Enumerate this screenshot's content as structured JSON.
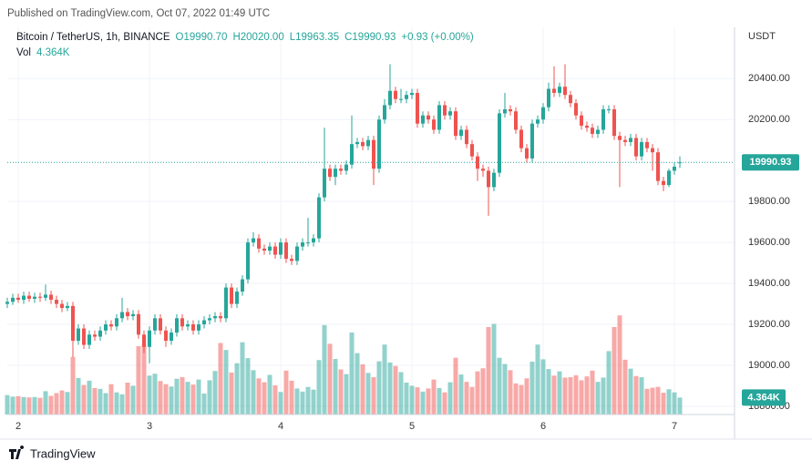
{
  "published": "Published on TradingView.com, Oct 07, 2022 01:49 UTC",
  "brand": "TradingView",
  "chart_data": {
    "type": "candlestick",
    "symbol": "Bitcoin / TetherUS, 1h, BINANCE",
    "ohlc_labels": {
      "open": "O19990.70",
      "high": "H20020.00",
      "low": "L19963.35",
      "close": "C19990.93",
      "change": "+0.93 (+0.00%)"
    },
    "volume_title": "Vol",
    "volume_label": "4.364K",
    "y_axis_label": "USDT",
    "up_color": "#26a69a",
    "down_color": "#ef5350",
    "grid": true,
    "xlim": [
      -2,
      131
    ],
    "xticks": [
      {
        "value": 0,
        "label": "2"
      },
      {
        "value": 24,
        "label": "3"
      },
      {
        "value": 48,
        "label": "4"
      },
      {
        "value": 72,
        "label": "5"
      },
      {
        "value": 96,
        "label": "6"
      },
      {
        "value": 120,
        "label": "7"
      }
    ],
    "ylim": [
      18760,
      20650
    ],
    "yticks": [
      {
        "value": 18800,
        "label": "18800.00"
      },
      {
        "value": 19000,
        "label": "19000.00"
      },
      {
        "value": 19200,
        "label": "19200.00"
      },
      {
        "value": 19400,
        "label": "19400.00"
      },
      {
        "value": 19600,
        "label": "19600.00"
      },
      {
        "value": 19800,
        "label": "19800.00"
      },
      {
        "value": 20200,
        "label": "20200.00"
      },
      {
        "value": 20400,
        "label": "20400.00"
      }
    ],
    "volume_lim": [
      0,
      30000
    ],
    "x": [
      -2,
      -1,
      0,
      1,
      2,
      3,
      4,
      5,
      6,
      7,
      8,
      9,
      10,
      11,
      12,
      13,
      14,
      15,
      16,
      17,
      18,
      19,
      20,
      21,
      22,
      23,
      24,
      25,
      26,
      27,
      28,
      29,
      30,
      31,
      32,
      33,
      34,
      35,
      36,
      37,
      38,
      39,
      40,
      41,
      42,
      43,
      44,
      45,
      46,
      47,
      48,
      49,
      50,
      51,
      52,
      53,
      54,
      55,
      56,
      57,
      58,
      59,
      60,
      61,
      62,
      63,
      64,
      65,
      66,
      67,
      68,
      69,
      70,
      71,
      72,
      73,
      74,
      75,
      76,
      77,
      78,
      79,
      80,
      81,
      82,
      83,
      84,
      85,
      86,
      87,
      88,
      89,
      90,
      91,
      92,
      93,
      94,
      95,
      96,
      97,
      98,
      99,
      100,
      101,
      102,
      103,
      104,
      105,
      106,
      107,
      108,
      109,
      110,
      111,
      112,
      113,
      114,
      115,
      116,
      117,
      118,
      119,
      120,
      121
    ],
    "open": [
      19300,
      19310,
      19330,
      19320,
      19340,
      19325,
      19335,
      19330,
      19345,
      19320,
      19300,
      19280,
      19290,
      19120,
      19180,
      19100,
      19150,
      19140,
      19170,
      19200,
      19190,
      19230,
      19260,
      19240,
      19250,
      19150,
      19090,
      19170,
      19230,
      19170,
      19120,
      19160,
      19230,
      19190,
      19200,
      19170,
      19200,
      19220,
      19230,
      19240,
      19230,
      19380,
      19300,
      19360,
      19420,
      19600,
      19620,
      19570,
      19560,
      19580,
      19540,
      19600,
      19520,
      19510,
      19580,
      19600,
      19600,
      19620,
      19820,
      19960,
      19920,
      19960,
      19950,
      19980,
      20080,
      20090,
      20070,
      20100,
      19960,
      20200,
      20270,
      20340,
      20300,
      20300,
      20320,
      20330,
      20180,
      20220,
      20200,
      20150,
      20270,
      20220,
      20240,
      20120,
      20150,
      20080,
      20020,
      19960,
      19950,
      19870,
      19940,
      20230,
      20250,
      20240,
      20150,
      20060,
      20010,
      20180,
      20200,
      20260,
      20350,
      20330,
      20360,
      20320,
      20280,
      20220,
      20170,
      20160,
      20130,
      20150,
      20250,
      20250,
      20120,
      20100,
      20090,
      20110,
      20020,
      20090,
      20060,
      20040,
      19900,
      19880,
      19950,
      19990.7
    ],
    "high": [
      19330,
      19350,
      19350,
      19360,
      19360,
      19355,
      19355,
      19395,
      19365,
      19340,
      19320,
      19310,
      19310,
      19200,
      19200,
      19170,
      19170,
      19190,
      19220,
      19220,
      19250,
      19330,
      19280,
      19270,
      19270,
      19170,
      19190,
      19250,
      19250,
      19190,
      19180,
      19250,
      19250,
      19220,
      19220,
      19220,
      19240,
      19250,
      19260,
      19260,
      19400,
      19400,
      19380,
      19440,
      19620,
      19650,
      19640,
      19590,
      19600,
      19600,
      19620,
      19620,
      19540,
      19600,
      19620,
      19720,
      19640,
      19840,
      20160,
      19980,
      19980,
      19980,
      20000,
      20220,
      20110,
      20110,
      20120,
      20120,
      20220,
      20300,
      20470,
      20360,
      20350,
      20340,
      20350,
      20350,
      20240,
      20240,
      20220,
      20290,
      20290,
      20260,
      20260,
      20170,
      20170,
      20100,
      20040,
      19980,
      19970,
      19960,
      20250,
      20330,
      20270,
      20260,
      20170,
      20080,
      20200,
      20220,
      20280,
      20380,
      20460,
      20380,
      20470,
      20340,
      20300,
      20240,
      20190,
      20180,
      20170,
      20270,
      20270,
      20270,
      20140,
      20120,
      20130,
      20130,
      20110,
      20110,
      20080,
      20060,
      19920,
      19960,
      19990,
      20020
    ],
    "low": [
      19280,
      19295,
      19305,
      19300,
      19310,
      19305,
      19310,
      19315,
      19300,
      19280,
      19260,
      19265,
      19040,
      19100,
      19080,
      19080,
      19120,
      19120,
      19150,
      19170,
      19170,
      19210,
      19220,
      19220,
      19130,
      19060,
      19010,
      19150,
      19150,
      19090,
      19100,
      19140,
      19170,
      19170,
      19150,
      19150,
      19180,
      19200,
      19210,
      19210,
      19210,
      19280,
      19280,
      19340,
      19400,
      19580,
      19550,
      19540,
      19540,
      19520,
      19520,
      19500,
      19490,
      19490,
      19560,
      19580,
      19580,
      19600,
      19800,
      19900,
      19880,
      19930,
      19930,
      19960,
      20060,
      20050,
      20050,
      19880,
      19940,
      20180,
      20250,
      20280,
      20280,
      20280,
      20300,
      20160,
      20160,
      20180,
      20130,
      20130,
      20200,
      20200,
      20100,
      20100,
      20060,
      20000,
      19900,
      19920,
      19730,
      19850,
      19920,
      20210,
      20220,
      20130,
      20040,
      19990,
      19990,
      20160,
      20180,
      20240,
      20310,
      20310,
      20300,
      20260,
      20200,
      20150,
      20140,
      20110,
      20110,
      20130,
      20230,
      20100,
      19870,
      20070,
      20070,
      20000,
      20000,
      20040,
      19950,
      19880,
      19850,
      19870,
      19930,
      19963.35
    ],
    "close": [
      19310,
      19330,
      19320,
      19340,
      19325,
      19335,
      19330,
      19345,
      19320,
      19300,
      19280,
      19290,
      19120,
      19180,
      19100,
      19150,
      19140,
      19170,
      19200,
      19190,
      19230,
      19260,
      19240,
      19250,
      19150,
      19090,
      19170,
      19230,
      19170,
      19120,
      19160,
      19230,
      19190,
      19200,
      19170,
      19200,
      19220,
      19230,
      19240,
      19230,
      19380,
      19300,
      19360,
      19420,
      19600,
      19620,
      19570,
      19560,
      19580,
      19540,
      19600,
      19520,
      19510,
      19580,
      19600,
      19600,
      19620,
      19820,
      19960,
      19920,
      19960,
      19950,
      19980,
      20080,
      20090,
      20070,
      20100,
      19960,
      20200,
      20270,
      20340,
      20300,
      20300,
      20320,
      20330,
      20180,
      20220,
      20200,
      20150,
      20270,
      20220,
      20240,
      20120,
      20150,
      20080,
      20020,
      19960,
      19950,
      19870,
      19940,
      20230,
      20250,
      20240,
      20150,
      20060,
      20010,
      20180,
      20200,
      20260,
      20350,
      20330,
      20360,
      20320,
      20280,
      20220,
      20170,
      20160,
      20130,
      20150,
      20250,
      20250,
      20120,
      20100,
      20090,
      20110,
      20020,
      20090,
      20060,
      20040,
      19900,
      19880,
      19950,
      19970,
      19990.93
    ],
    "volume": [
      5000,
      4600,
      4700,
      4500,
      4400,
      4500,
      4300,
      6000,
      4800,
      5500,
      6200,
      5800,
      14800,
      9400,
      7600,
      8700,
      6800,
      6600,
      5500,
      7800,
      5700,
      5200,
      8200,
      7400,
      17600,
      18000,
      10000,
      10500,
      8600,
      7800,
      7200,
      9200,
      9600,
      8400,
      7700,
      9000,
      5400,
      8800,
      11200,
      18400,
      16600,
      10800,
      13200,
      18600,
      14500,
      11400,
      9300,
      8300,
      10200,
      7500,
      5800,
      11300,
      8700,
      6700,
      5900,
      7100,
      6400,
      14000,
      23000,
      18200,
      14300,
      11600,
      10400,
      21100,
      15800,
      12900,
      10700,
      9600,
      13700,
      18000,
      13400,
      12500,
      10900,
      8200,
      7400,
      7000,
      5900,
      6700,
      9000,
      6800,
      5700,
      8300,
      14600,
      10300,
      8400,
      7100,
      11100,
      11900,
      22500,
      23300,
      14600,
      13000,
      11400,
      8000,
      7600,
      9300,
      13600,
      18000,
      14200,
      11700,
      10000,
      11100,
      9500,
      9600,
      10100,
      8800,
      9800,
      11300,
      8400,
      9500,
      16300,
      22500,
      25500,
      14100,
      11800,
      9900,
      9600,
      6600,
      6900,
      7100,
      5600,
      6500,
      5700,
      4364
    ]
  }
}
